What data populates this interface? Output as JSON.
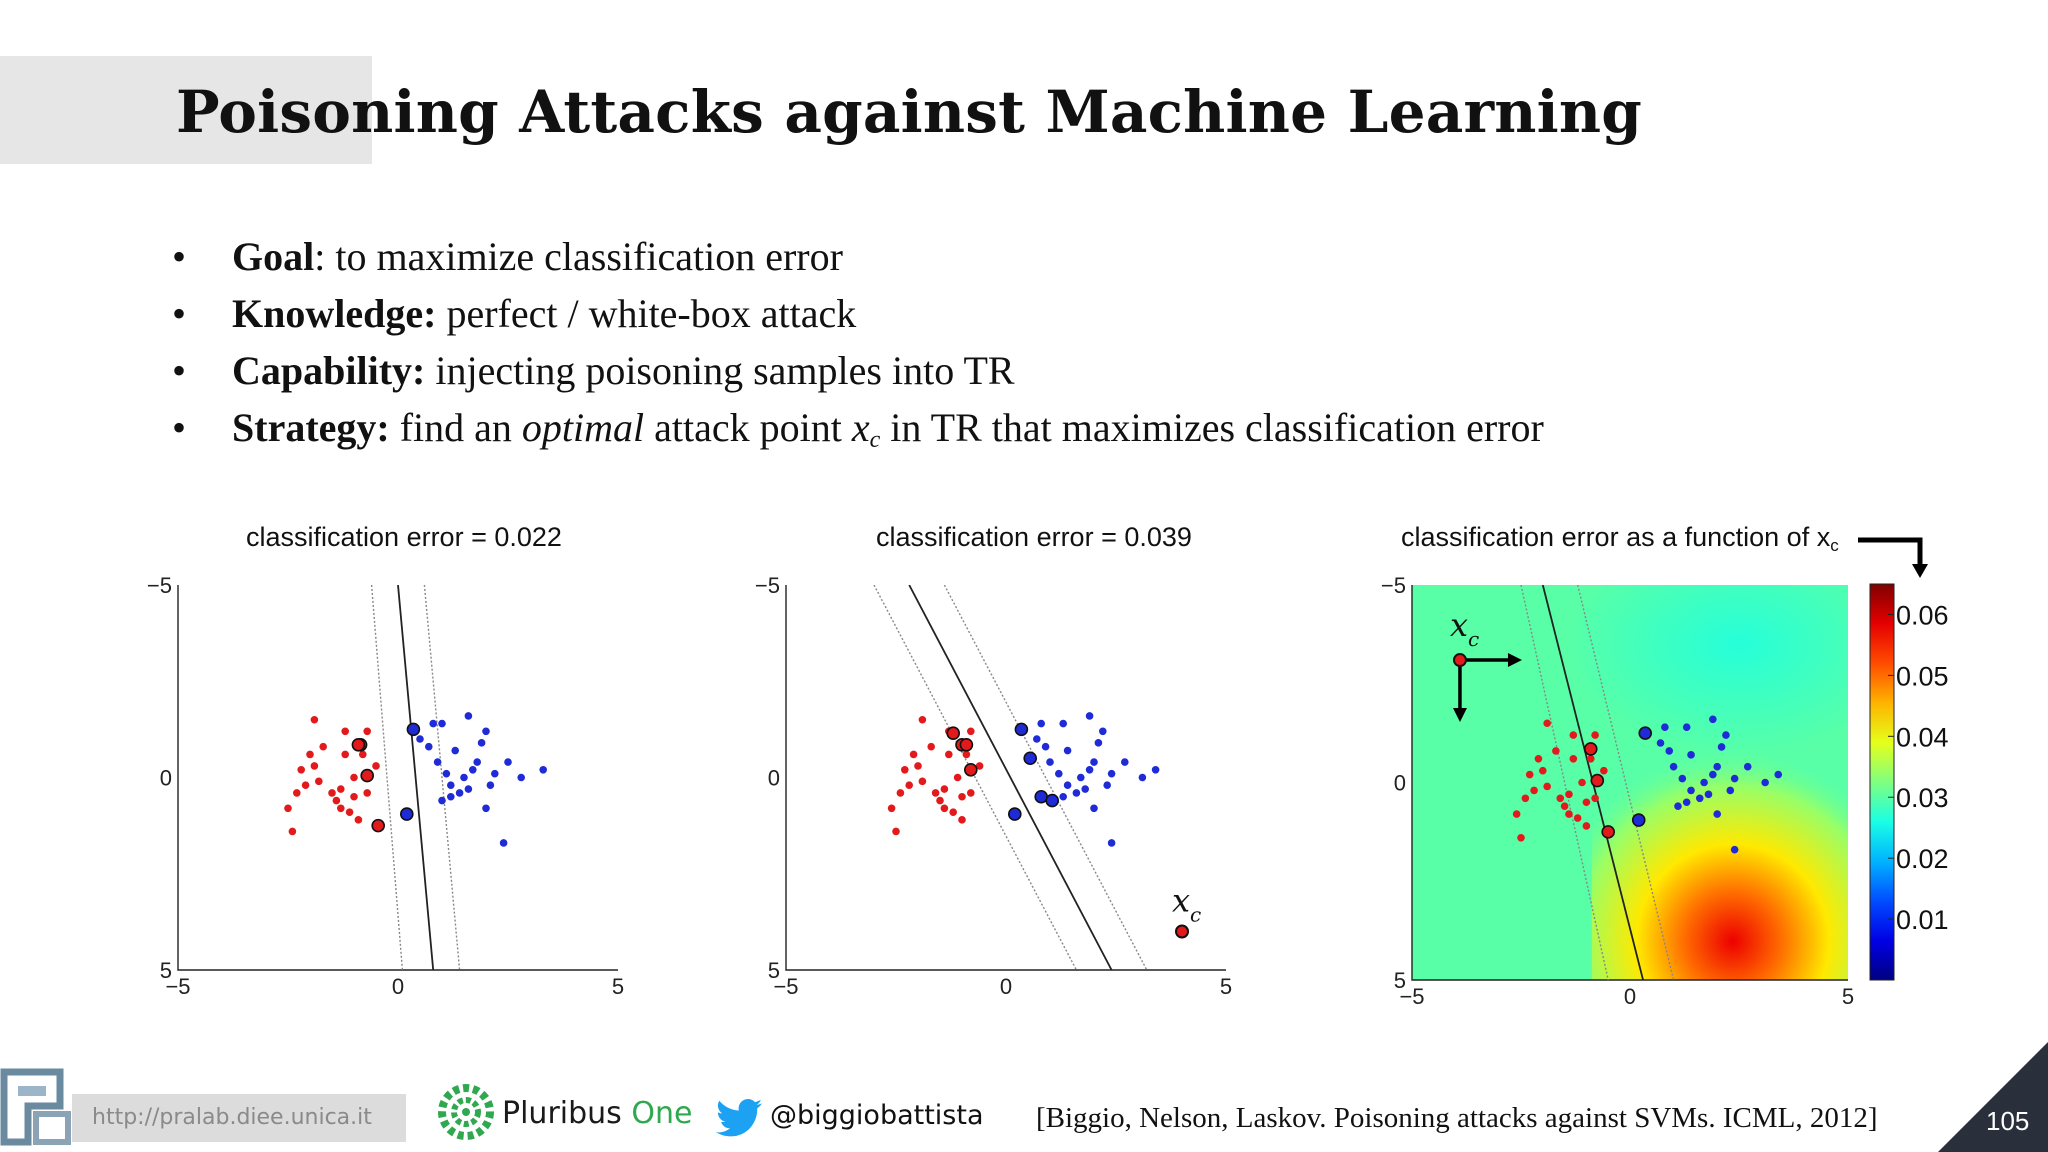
{
  "slide": {
    "title": "Poisoning Attacks against Machine Learning",
    "bullets": [
      {
        "label": "Goal",
        "text": ": to maximize classification error"
      },
      {
        "label": "Knowledge:",
        "text": " perfect / white-box attack"
      },
      {
        "label": "Capability:",
        "text": " injecting poisoning samples into TR"
      },
      {
        "label": "Strategy:",
        "pre": " find an ",
        "emph": "optimal",
        "mid": " attack point ",
        "var": "x",
        "var_sub": "c",
        "post": " in TR that maximizes classification error"
      }
    ],
    "page_number": "105"
  },
  "footer": {
    "url": "http://pralab.diee.unica.it",
    "brand_name": "Pluribus ",
    "brand_name_accent": "One",
    "twitter_handle": "@biggiobattista",
    "citation": "[Biggio, Nelson, Laskov. Poisoning attacks against SVMs. ICML, 2012]",
    "icons": [
      "pralab-logo-icon",
      "pluribus-one-logo-icon",
      "twitter-bird-icon"
    ],
    "colors": {
      "pluribus_accent": "#2fa84f",
      "twitter_blue": "#1da1f2",
      "corner": "#2a2f3c"
    }
  },
  "chart_data": [
    {
      "type": "scatter",
      "title": "classification error = 0.022",
      "xlim": [
        -5,
        5
      ],
      "ylim": [
        -5,
        5
      ],
      "xticks": [
        "−5",
        "0",
        "5"
      ],
      "yticks": [
        "−5",
        "0",
        "5"
      ],
      "boundary": [
        [
          0.0,
          5.0
        ],
        [
          0.8,
          -5.0
        ]
      ],
      "margins": [
        [
          [
            -0.6,
            5.0
          ],
          [
            0.1,
            -5.0
          ]
        ],
        [
          [
            0.6,
            5.0
          ],
          [
            1.4,
            -5.0
          ]
        ]
      ],
      "series": [
        {
          "color": "#e31a1c",
          "points": [
            [
              -2.5,
              -0.8
            ],
            [
              -2.4,
              -1.4
            ],
            [
              -2.3,
              -0.4
            ],
            [
              -2.2,
              0.2
            ],
            [
              -2.1,
              -0.2
            ],
            [
              -2.0,
              0.6
            ],
            [
              -1.9,
              0.3
            ],
            [
              -1.8,
              -0.1
            ],
            [
              -1.9,
              1.5
            ],
            [
              -1.7,
              0.8
            ],
            [
              -1.5,
              -0.4
            ],
            [
              -1.4,
              -0.6
            ],
            [
              -1.3,
              -0.3
            ],
            [
              -1.2,
              1.2
            ],
            [
              -1.2,
              0.6
            ],
            [
              -1.0,
              0.0
            ],
            [
              -1.1,
              -0.9
            ],
            [
              -0.9,
              -1.1
            ],
            [
              -0.8,
              0.6
            ],
            [
              -0.7,
              -0.4
            ],
            [
              -1.3,
              -0.8
            ],
            [
              -0.7,
              1.2
            ],
            [
              -0.5,
              0.3
            ],
            [
              -1.0,
              -0.5
            ]
          ]
        },
        {
          "color": "#1f2bd6",
          "points": [
            [
              0.5,
              1.0
            ],
            [
              0.7,
              0.8
            ],
            [
              0.8,
              1.4
            ],
            [
              0.9,
              0.4
            ],
            [
              1.0,
              1.4
            ],
            [
              1.1,
              0.1
            ],
            [
              1.2,
              -0.2
            ],
            [
              1.3,
              0.7
            ],
            [
              1.4,
              -0.4
            ],
            [
              1.5,
              0.0
            ],
            [
              1.6,
              -0.3
            ],
            [
              1.6,
              1.6
            ],
            [
              1.7,
              0.2
            ],
            [
              1.8,
              0.4
            ],
            [
              1.9,
              0.9
            ],
            [
              2.0,
              1.2
            ],
            [
              2.1,
              -0.2
            ],
            [
              2.2,
              0.1
            ],
            [
              2.5,
              0.4
            ],
            [
              2.8,
              0.0
            ],
            [
              3.3,
              0.2
            ],
            [
              2.4,
              -1.7
            ],
            [
              1.2,
              -0.5
            ],
            [
              1.0,
              -0.6
            ],
            [
              2.0,
              -0.8
            ]
          ]
        },
        {
          "name": "support vectors",
          "color": "#e31a1c",
          "outlined": true,
          "points": [
            [
              -0.85,
              0.85
            ],
            [
              -0.9,
              0.85
            ],
            [
              -0.7,
              0.05
            ],
            [
              -0.45,
              -1.25
            ]
          ]
        },
        {
          "name": "support vectors",
          "color": "#1f2bd6",
          "outlined": true,
          "points": [
            [
              0.35,
              1.25
            ],
            [
              0.2,
              -0.95
            ]
          ]
        }
      ]
    },
    {
      "type": "scatter",
      "title": "classification error = 0.039",
      "xlim": [
        -5,
        5
      ],
      "ylim": [
        -5,
        5
      ],
      "xticks": [
        "−5",
        "0",
        "5"
      ],
      "yticks": [
        "−5",
        "0",
        "5"
      ],
      "boundary": [
        [
          -2.2,
          5.0
        ],
        [
          2.4,
          -5.0
        ]
      ],
      "margins": [
        [
          [
            -3.0,
            5.0
          ],
          [
            1.6,
            -5.0
          ]
        ],
        [
          [
            -1.4,
            5.0
          ],
          [
            3.2,
            -5.0
          ]
        ]
      ],
      "attack_point": {
        "x": 4.0,
        "y": -4.0,
        "label": "x",
        "label_sub": "c"
      },
      "series": [
        {
          "color": "#e31a1c",
          "points": [
            [
              -2.6,
              -0.8
            ],
            [
              -2.5,
              -1.4
            ],
            [
              -2.4,
              -0.4
            ],
            [
              -2.3,
              0.2
            ],
            [
              -2.2,
              -0.2
            ],
            [
              -2.1,
              0.6
            ],
            [
              -2.0,
              0.3
            ],
            [
              -1.9,
              -0.1
            ],
            [
              -1.9,
              1.5
            ],
            [
              -1.7,
              0.8
            ],
            [
              -1.6,
              -0.4
            ],
            [
              -1.5,
              -0.6
            ],
            [
              -1.4,
              -0.3
            ],
            [
              -1.3,
              1.2
            ],
            [
              -1.3,
              0.6
            ],
            [
              -1.1,
              0.0
            ],
            [
              -1.2,
              -0.9
            ],
            [
              -1.0,
              -1.1
            ],
            [
              -0.9,
              0.6
            ],
            [
              -0.8,
              -0.4
            ],
            [
              -1.4,
              -0.8
            ],
            [
              -0.8,
              1.2
            ],
            [
              -0.6,
              0.3
            ],
            [
              -1.0,
              -0.5
            ]
          ]
        },
        {
          "color": "#1f2bd6",
          "points": [
            [
              0.7,
              1.0
            ],
            [
              0.9,
              0.8
            ],
            [
              0.8,
              1.4
            ],
            [
              1.0,
              0.4
            ],
            [
              1.3,
              1.4
            ],
            [
              1.2,
              0.1
            ],
            [
              1.4,
              -0.2
            ],
            [
              1.4,
              0.7
            ],
            [
              1.6,
              -0.4
            ],
            [
              1.7,
              0.0
            ],
            [
              1.8,
              -0.3
            ],
            [
              1.9,
              1.6
            ],
            [
              1.9,
              0.2
            ],
            [
              2.0,
              0.4
            ],
            [
              2.1,
              0.9
            ],
            [
              2.2,
              1.2
            ],
            [
              2.3,
              -0.2
            ],
            [
              2.4,
              0.1
            ],
            [
              2.7,
              0.4
            ],
            [
              3.1,
              0.0
            ],
            [
              3.4,
              0.2
            ],
            [
              2.4,
              -1.7
            ],
            [
              1.3,
              -0.5
            ],
            [
              1.1,
              -0.6
            ],
            [
              2.0,
              -0.8
            ]
          ]
        },
        {
          "name": "support vectors",
          "color": "#e31a1c",
          "outlined": true,
          "points": [
            [
              -1.2,
              1.15
            ],
            [
              -1.0,
              0.85
            ],
            [
              -0.9,
              0.85
            ],
            [
              -0.8,
              0.2
            ]
          ]
        },
        {
          "name": "support vectors",
          "color": "#1f2bd6",
          "outlined": true,
          "points": [
            [
              0.35,
              1.25
            ],
            [
              0.55,
              0.5
            ],
            [
              0.8,
              -0.5
            ],
            [
              1.05,
              -0.6
            ],
            [
              0.2,
              -0.95
            ]
          ]
        }
      ]
    },
    {
      "type": "heatmap",
      "title": "classification error as a function of x",
      "title_sub": "c",
      "xlim": [
        -5,
        5
      ],
      "ylim": [
        -5,
        5
      ],
      "xticks": [
        "−5",
        "0",
        "5"
      ],
      "yticks": [
        "−5",
        "0",
        "5"
      ],
      "colorbar": {
        "min": 0.0,
        "max": 0.065,
        "ticks": [
          "0.06",
          "0.05",
          "0.04",
          "0.03",
          "0.02",
          "0.01"
        ],
        "tick_values": [
          0.06,
          0.05,
          0.04,
          0.03,
          0.02,
          0.01
        ]
      },
      "background_value": 0.03,
      "hot_region": {
        "x_range": [
          0.5,
          5.0
        ],
        "y_range": [
          -5.0,
          -2.0
        ],
        "peak_value": 0.055
      },
      "boundary": [
        [
          -2.0,
          5.0
        ],
        [
          0.3,
          -5.0
        ]
      ],
      "margins": [
        [
          [
            -2.5,
            5.0
          ],
          [
            -0.5,
            -5.0
          ]
        ],
        [
          [
            -1.2,
            5.0
          ],
          [
            1.0,
            -5.0
          ]
        ]
      ],
      "attack_point": {
        "x": -3.9,
        "y": 3.1,
        "label": "x",
        "label_sub": "c"
      },
      "series": [
        {
          "color": "#e31a1c",
          "points": [
            [
              -2.6,
              -0.8
            ],
            [
              -2.5,
              -1.4
            ],
            [
              -2.4,
              -0.4
            ],
            [
              -2.3,
              0.2
            ],
            [
              -2.2,
              -0.2
            ],
            [
              -2.1,
              0.6
            ],
            [
              -2.0,
              0.3
            ],
            [
              -1.9,
              -0.1
            ],
            [
              -1.9,
              1.5
            ],
            [
              -1.7,
              0.8
            ],
            [
              -1.6,
              -0.4
            ],
            [
              -1.5,
              -0.6
            ],
            [
              -1.4,
              -0.3
            ],
            [
              -1.3,
              1.2
            ],
            [
              -1.3,
              0.6
            ],
            [
              -1.1,
              0.0
            ],
            [
              -1.2,
              -0.9
            ],
            [
              -1.0,
              -1.1
            ],
            [
              -0.9,
              0.6
            ],
            [
              -0.8,
              -0.4
            ],
            [
              -1.4,
              -0.8
            ],
            [
              -0.8,
              1.2
            ],
            [
              -0.6,
              0.3
            ],
            [
              -1.0,
              -0.5
            ]
          ]
        },
        {
          "color": "#1f2bd6",
          "points": [
            [
              0.7,
              1.0
            ],
            [
              0.9,
              0.8
            ],
            [
              0.8,
              1.4
            ],
            [
              1.0,
              0.4
            ],
            [
              1.3,
              1.4
            ],
            [
              1.2,
              0.1
            ],
            [
              1.4,
              -0.2
            ],
            [
              1.4,
              0.7
            ],
            [
              1.6,
              -0.4
            ],
            [
              1.7,
              0.0
            ],
            [
              1.8,
              -0.3
            ],
            [
              1.9,
              1.6
            ],
            [
              1.9,
              0.2
            ],
            [
              2.0,
              0.4
            ],
            [
              2.1,
              0.9
            ],
            [
              2.2,
              1.2
            ],
            [
              2.3,
              -0.2
            ],
            [
              2.4,
              0.1
            ],
            [
              2.7,
              0.4
            ],
            [
              3.1,
              0.0
            ],
            [
              3.4,
              0.2
            ],
            [
              2.4,
              -1.7
            ],
            [
              1.3,
              -0.5
            ],
            [
              1.1,
              -0.6
            ],
            [
              2.0,
              -0.8
            ]
          ]
        },
        {
          "name": "support vectors",
          "color": "#e31a1c",
          "outlined": true,
          "points": [
            [
              -0.9,
              0.85
            ],
            [
              -0.75,
              0.05
            ],
            [
              -0.5,
              -1.25
            ]
          ]
        },
        {
          "name": "support vectors",
          "color": "#1f2bd6",
          "outlined": true,
          "points": [
            [
              0.35,
              1.25
            ],
            [
              0.2,
              -0.95
            ]
          ]
        }
      ]
    }
  ]
}
